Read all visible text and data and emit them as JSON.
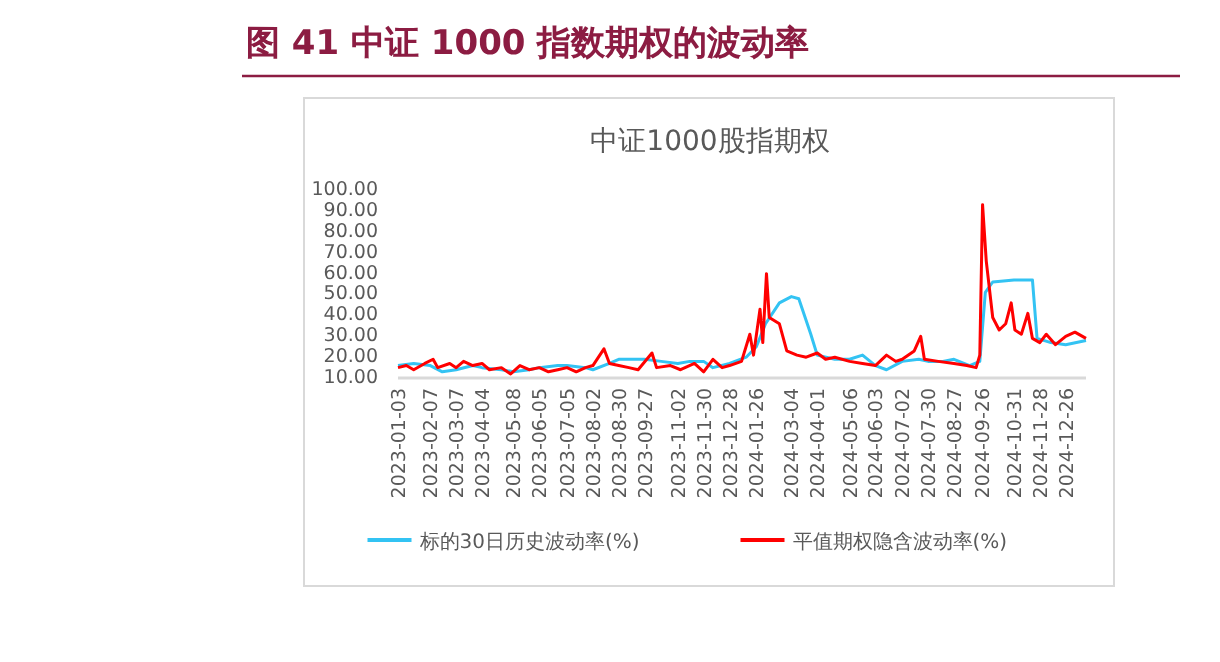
{
  "chart_data": {
    "type": "line",
    "title": "图 41 中证 1000 指数期权的波动率",
    "subtitle": "中证1000股指期权",
    "xlim": [
      "2023-01-03",
      "2025-01-17"
    ],
    "xticks": [
      "2023-01-03",
      "2023-02-07",
      "2023-03-07",
      "2023-04-04",
      "2023-05-08",
      "2023-06-05",
      "2023-07-05",
      "2023-08-02",
      "2023-08-30",
      "2023-09-27",
      "2023-11-02",
      "2023-11-30",
      "2023-12-28",
      "2024-01-26",
      "2024-03-04",
      "2024-04-01",
      "2024-05-06",
      "2024-06-03",
      "2024-07-02",
      "2024-07-30",
      "2024-08-27",
      "2024-09-26",
      "2024-10-31",
      "2024-11-28",
      "2024-12-26"
    ],
    "ylim": [
      10,
      100
    ],
    "yticks": [
      {
        "value": 10,
        "label": "10.00"
      },
      {
        "value": 20,
        "label": "20.00"
      },
      {
        "value": 30,
        "label": "30.00"
      },
      {
        "value": 40,
        "label": "40.00"
      },
      {
        "value": 50,
        "label": "50.00"
      },
      {
        "value": 60,
        "label": "60.00"
      },
      {
        "value": 70,
        "label": "70.00"
      },
      {
        "value": 80,
        "label": "80.00"
      },
      {
        "value": 90,
        "label": "90.00"
      },
      {
        "value": 100,
        "label": "100.00"
      }
    ],
    "legend": "bottom",
    "series": [
      {
        "name": "标的30日历史波动率(%)",
        "color": "#33c3f3",
        "x": [
          "2023-01-03",
          "2023-01-20",
          "2023-02-07",
          "2023-02-20",
          "2023-03-07",
          "2023-03-25",
          "2023-04-04",
          "2023-04-25",
          "2023-05-08",
          "2023-05-25",
          "2023-06-05",
          "2023-06-25",
          "2023-07-05",
          "2023-07-25",
          "2023-08-02",
          "2023-08-20",
          "2023-08-30",
          "2023-09-15",
          "2023-09-27",
          "2023-10-15",
          "2023-11-02",
          "2023-11-15",
          "2023-11-30",
          "2023-12-10",
          "2023-12-28",
          "2024-01-15",
          "2024-01-26",
          "2024-02-05",
          "2024-02-20",
          "2024-03-04",
          "2024-03-12",
          "2024-03-25",
          "2024-04-01",
          "2024-04-20",
          "2024-05-06",
          "2024-05-20",
          "2024-06-03",
          "2024-06-15",
          "2024-07-02",
          "2024-07-20",
          "2024-07-30",
          "2024-08-15",
          "2024-08-27",
          "2024-09-13",
          "2024-09-24",
          "2024-09-30",
          "2024-10-08",
          "2024-10-31",
          "2024-11-20",
          "2024-11-25",
          "2024-12-10",
          "2024-12-26",
          "2025-01-17"
        ],
        "values": [
          15,
          16,
          15,
          12,
          13,
          15,
          14,
          13,
          12,
          13,
          14,
          15,
          15,
          14,
          13,
          16,
          18,
          18,
          18,
          17,
          16,
          17,
          17,
          14,
          16,
          19,
          24,
          35,
          45,
          48,
          47,
          30,
          20,
          18,
          18,
          20,
          15,
          13,
          17,
          18,
          17,
          17,
          18,
          15,
          17,
          50,
          55,
          56,
          56,
          28,
          26,
          25,
          27
        ]
      },
      {
        "name": "平值期权隐含波动率(%)",
        "color": "#ff0000",
        "x": [
          "2023-01-03",
          "2023-01-12",
          "2023-01-20",
          "2023-02-01",
          "2023-02-10",
          "2023-02-15",
          "2023-02-28",
          "2023-03-07",
          "2023-03-15",
          "2023-03-25",
          "2023-04-04",
          "2023-04-12",
          "2023-04-25",
          "2023-05-05",
          "2023-05-15",
          "2023-05-25",
          "2023-06-05",
          "2023-06-15",
          "2023-06-25",
          "2023-07-05",
          "2023-07-15",
          "2023-07-25",
          "2023-08-02",
          "2023-08-14",
          "2023-08-20",
          "2023-08-30",
          "2023-09-10",
          "2023-09-20",
          "2023-10-05",
          "2023-10-10",
          "2023-10-25",
          "2023-11-05",
          "2023-11-20",
          "2023-11-30",
          "2023-12-10",
          "2023-12-20",
          "2023-12-28",
          "2024-01-10",
          "2024-01-19",
          "2024-01-23",
          "2024-01-30",
          "2024-02-02",
          "2024-02-06",
          "2024-02-09",
          "2024-02-20",
          "2024-02-28",
          "2024-03-10",
          "2024-03-20",
          "2024-04-01",
          "2024-04-10",
          "2024-04-20",
          "2024-05-06",
          "2024-05-20",
          "2024-06-03",
          "2024-06-15",
          "2024-06-25",
          "2024-07-02",
          "2024-07-15",
          "2024-07-22",
          "2024-07-26",
          "2024-08-10",
          "2024-08-27",
          "2024-09-10",
          "2024-09-20",
          "2024-09-24",
          "2024-09-27",
          "2024-10-01",
          "2024-10-08",
          "2024-10-15",
          "2024-10-22",
          "2024-10-28",
          "2024-11-01",
          "2024-11-08",
          "2024-11-15",
          "2024-11-20",
          "2024-11-28",
          "2024-12-05",
          "2024-12-15",
          "2024-12-26",
          "2025-01-05",
          "2025-01-17"
        ],
        "values": [
          14,
          15,
          13,
          16,
          18,
          14,
          16,
          14,
          17,
          15,
          16,
          13,
          14,
          11,
          15,
          13,
          14,
          12,
          13,
          14,
          12,
          14,
          15,
          23,
          16,
          15,
          14,
          13,
          21,
          14,
          15,
          13,
          16,
          12,
          18,
          14,
          15,
          17,
          30,
          20,
          42,
          26,
          59,
          38,
          35,
          22,
          20,
          19,
          21,
          18,
          19,
          17,
          16,
          15,
          20,
          17,
          18,
          22,
          29,
          18,
          17,
          16,
          15,
          14,
          20,
          92,
          65,
          38,
          32,
          35,
          45,
          32,
          30,
          40,
          28,
          26,
          30,
          25,
          29,
          31,
          28
        ]
      }
    ]
  }
}
